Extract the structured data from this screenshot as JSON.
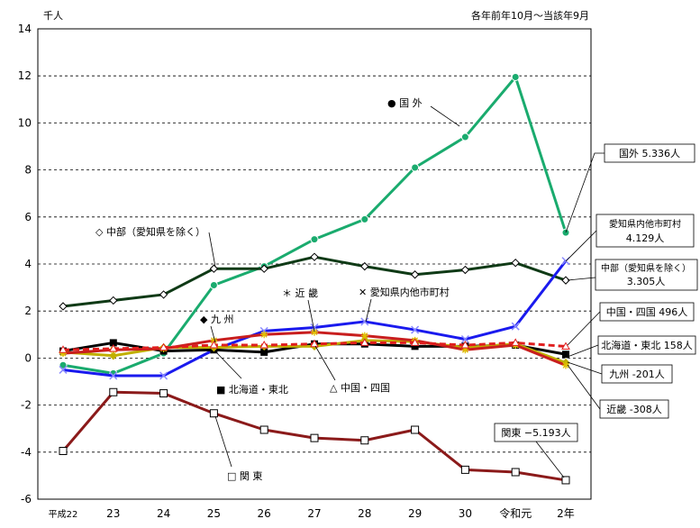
{
  "chart_data": {
    "type": "line",
    "y_unit_label": "千人",
    "period_note": "各年前年10月～当該年9月",
    "ylim": [
      -6,
      14
    ],
    "yticks": [
      "14",
      "12",
      "10",
      "8",
      "6",
      "4",
      "2",
      "0",
      "-2",
      "-4",
      "-6"
    ],
    "grid": "horizontal dashed",
    "categories": [
      "平成22",
      "23",
      "24",
      "25",
      "26",
      "27",
      "28",
      "29",
      "30",
      "令和元",
      "2年"
    ],
    "series": [
      {
        "name": "国外",
        "marker": "filled-circle",
        "color": "#1aab6e",
        "values": [
          -0.3,
          -0.65,
          0.2,
          3.1,
          3.9,
          5.05,
          5.9,
          8.1,
          9.4,
          11.95,
          5.336
        ]
      },
      {
        "name": "中部（愛知県を除く）",
        "marker": "open-diamond",
        "color": "#0f3a16",
        "values": [
          2.2,
          2.45,
          2.7,
          3.8,
          3.8,
          4.3,
          3.9,
          3.55,
          3.75,
          4.05,
          3.305
        ]
      },
      {
        "name": "愛知県内他市町村",
        "marker": "x",
        "color": "#1a1aee",
        "values": [
          -0.5,
          -0.75,
          -0.75,
          0.35,
          1.15,
          1.3,
          1.55,
          1.2,
          0.8,
          1.35,
          4.129
        ]
      },
      {
        "name": "北海道・東北",
        "marker": "filled-square",
        "color": "#000000",
        "values": [
          0.3,
          0.65,
          0.3,
          0.35,
          0.25,
          0.6,
          0.6,
          0.5,
          0.5,
          0.55,
          0.158
        ]
      },
      {
        "name": "九州",
        "marker": "filled-diamond",
        "color": "#c0b000",
        "values": [
          0.25,
          0.1,
          0.45,
          0.45,
          0.5,
          0.5,
          0.75,
          0.7,
          0.45,
          0.6,
          -0.201
        ]
      },
      {
        "name": "近畿",
        "marker": "asterisk",
        "color": "#c81e1e",
        "values": [
          0.2,
          0.35,
          0.4,
          0.75,
          1.0,
          1.1,
          0.95,
          0.75,
          0.35,
          0.55,
          -0.308
        ]
      },
      {
        "name": "中国・四国",
        "marker": "open-triangle",
        "color": "#e01e1e",
        "values": [
          0.35,
          0.4,
          0.45,
          0.55,
          0.55,
          0.6,
          0.65,
          0.65,
          0.55,
          0.65,
          0.496
        ]
      },
      {
        "name": "関東",
        "marker": "open-square",
        "color": "#8b1a1a",
        "values": [
          -3.95,
          -1.45,
          -1.5,
          -2.35,
          -3.05,
          -3.4,
          -3.5,
          -3.05,
          -4.75,
          -4.85,
          -5.193
        ]
      }
    ],
    "series_labels": {
      "kokugai": "● 国 外",
      "chubu": "◇ 中部（愛知県を除く）",
      "kinki": "＊ 近 畿",
      "aichi": "✕ 愛知県内他市町村",
      "kyushu": "◆ 九 州",
      "hokkaido": "■ 北海道・東北",
      "chugoku": "△ 中国・四国",
      "kanto": "□ 関 東"
    },
    "end_callouts": {
      "kokugai": "国外 5.336人",
      "aichi_1": "愛知県内他市町村",
      "aichi_2": "4.129人",
      "chubu_1": "中部（愛知県を除く）",
      "chubu_2": "3.305人",
      "chugoku": "中国・四国 496人",
      "hokkaido": "北海道・東北 158人",
      "kyushu": "九州 -201人",
      "kinki": "近畿 -308人",
      "kanto": "関東 −5.193人"
    }
  }
}
